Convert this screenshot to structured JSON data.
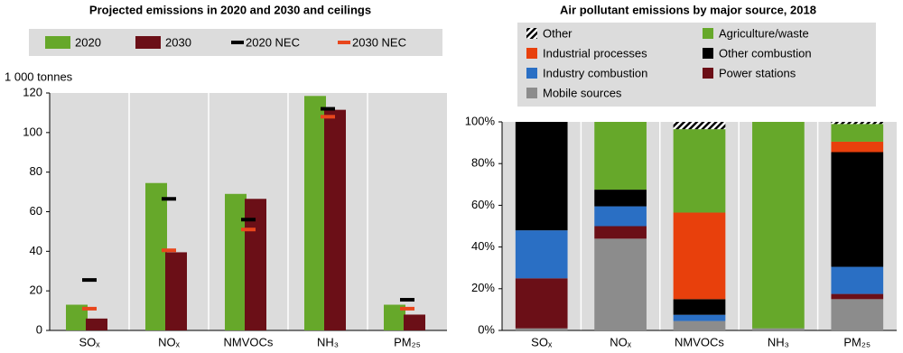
{
  "chart_data": [
    {
      "type": "bar",
      "title": "Projected emissions in 2020 and 2030 and ceilings",
      "y_label": "1 000 tonnes",
      "categories": [
        "SOₓ",
        "NOₓ",
        "NMVOCs",
        "NH₃",
        "PM₂₅"
      ],
      "series": [
        {
          "name": "2020",
          "color": "#66a82a",
          "marker": "bar",
          "values": [
            13,
            74.5,
            69,
            118.5,
            13
          ]
        },
        {
          "name": "2030",
          "color": "#6b0f17",
          "marker": "bar",
          "values": [
            6,
            39.5,
            66.5,
            111.5,
            8
          ]
        },
        {
          "name": "2020 NEC",
          "color": "#000000",
          "marker": "dash",
          "values": [
            25.5,
            66.5,
            56,
            112,
            15.5
          ]
        },
        {
          "name": "2030 NEC",
          "color": "#e8461c",
          "marker": "dash",
          "values": [
            11,
            40.5,
            51,
            108,
            11
          ]
        }
      ],
      "ylim": [
        0,
        120
      ],
      "yticks": [
        0,
        20,
        40,
        60,
        80,
        100,
        120
      ]
    },
    {
      "type": "stacked_bar",
      "title": "Air pollutant emissions by major source, 2018",
      "categories": [
        "SOₓ",
        "NOₓ",
        "NMVOCs",
        "NH₃",
        "PM₂₅"
      ],
      "series": [
        {
          "name": "Mobile sources",
          "color": "#8c8c8c",
          "values": [
            1,
            44,
            4.5,
            1,
            15
          ]
        },
        {
          "name": "Power stations",
          "color": "#6b0f17",
          "values": [
            24,
            6,
            0,
            0,
            2.5
          ]
        },
        {
          "name": "Industry combustion",
          "color": "#2a6fc4",
          "values": [
            23,
            9.5,
            3,
            0,
            13
          ]
        },
        {
          "name": "Other combustion",
          "color": "#000000",
          "values": [
            52,
            8,
            7.5,
            0,
            55
          ]
        },
        {
          "name": "Industrial processes",
          "color": "#e8400c",
          "values": [
            0,
            0,
            41.5,
            0,
            5
          ]
        },
        {
          "name": "Agriculture/waste",
          "color": "#66a82a",
          "values": [
            0,
            32.5,
            40,
            99,
            8.5
          ]
        },
        {
          "name": "Other",
          "color": "#000000",
          "hatch": true,
          "values": [
            0,
            0,
            3.5,
            0,
            1
          ]
        }
      ],
      "legend_order": [
        "Other",
        "Agriculture/waste",
        "Industrial processes",
        "Other combustion",
        "Industry combustion",
        "Power stations",
        "Mobile sources"
      ],
      "ylim": [
        0,
        100
      ],
      "yticks": [
        {
          "value": 0,
          "label": "0%"
        },
        {
          "value": 20,
          "label": "20%"
        },
        {
          "value": 40,
          "label": "40%"
        },
        {
          "value": 60,
          "label": "60%"
        },
        {
          "value": 80,
          "label": "80%"
        },
        {
          "value": 100,
          "label": "100%"
        }
      ]
    }
  ]
}
